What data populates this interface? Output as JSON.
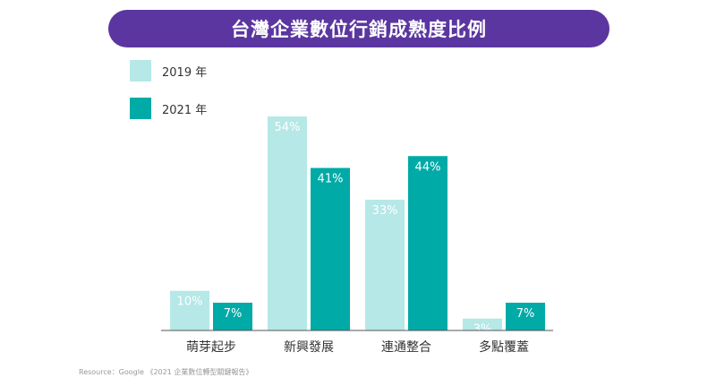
{
  "chart_data": {
    "type": "bar",
    "title": "台灣企業數位行銷成熟度比例",
    "categories": [
      "萌芽起步",
      "新興發展",
      "連通整合",
      "多點覆蓋"
    ],
    "series": [
      {
        "name": "2019 年",
        "values": [
          10,
          54,
          33,
          3
        ],
        "labels": [
          "10%",
          "54%",
          "33%",
          "3%"
        ],
        "color": "#b5e8e6",
        "label_color": "#ffffff"
      },
      {
        "name": "2021 年",
        "values": [
          7,
          41,
          44,
          7
        ],
        "labels": [
          "7%",
          "41%",
          "44%",
          "7%"
        ],
        "color": "#00aaa6",
        "label_color": "#ffffff"
      }
    ],
    "ylim": [
      0,
      60
    ],
    "grid": false,
    "legend": "top-left"
  },
  "source": "Resource：Google 《2021 企業數位轉型關鍵報告》",
  "colors": {
    "title_bg": "#5b36a0",
    "axis": "#555555",
    "category_text": "#333333"
  }
}
